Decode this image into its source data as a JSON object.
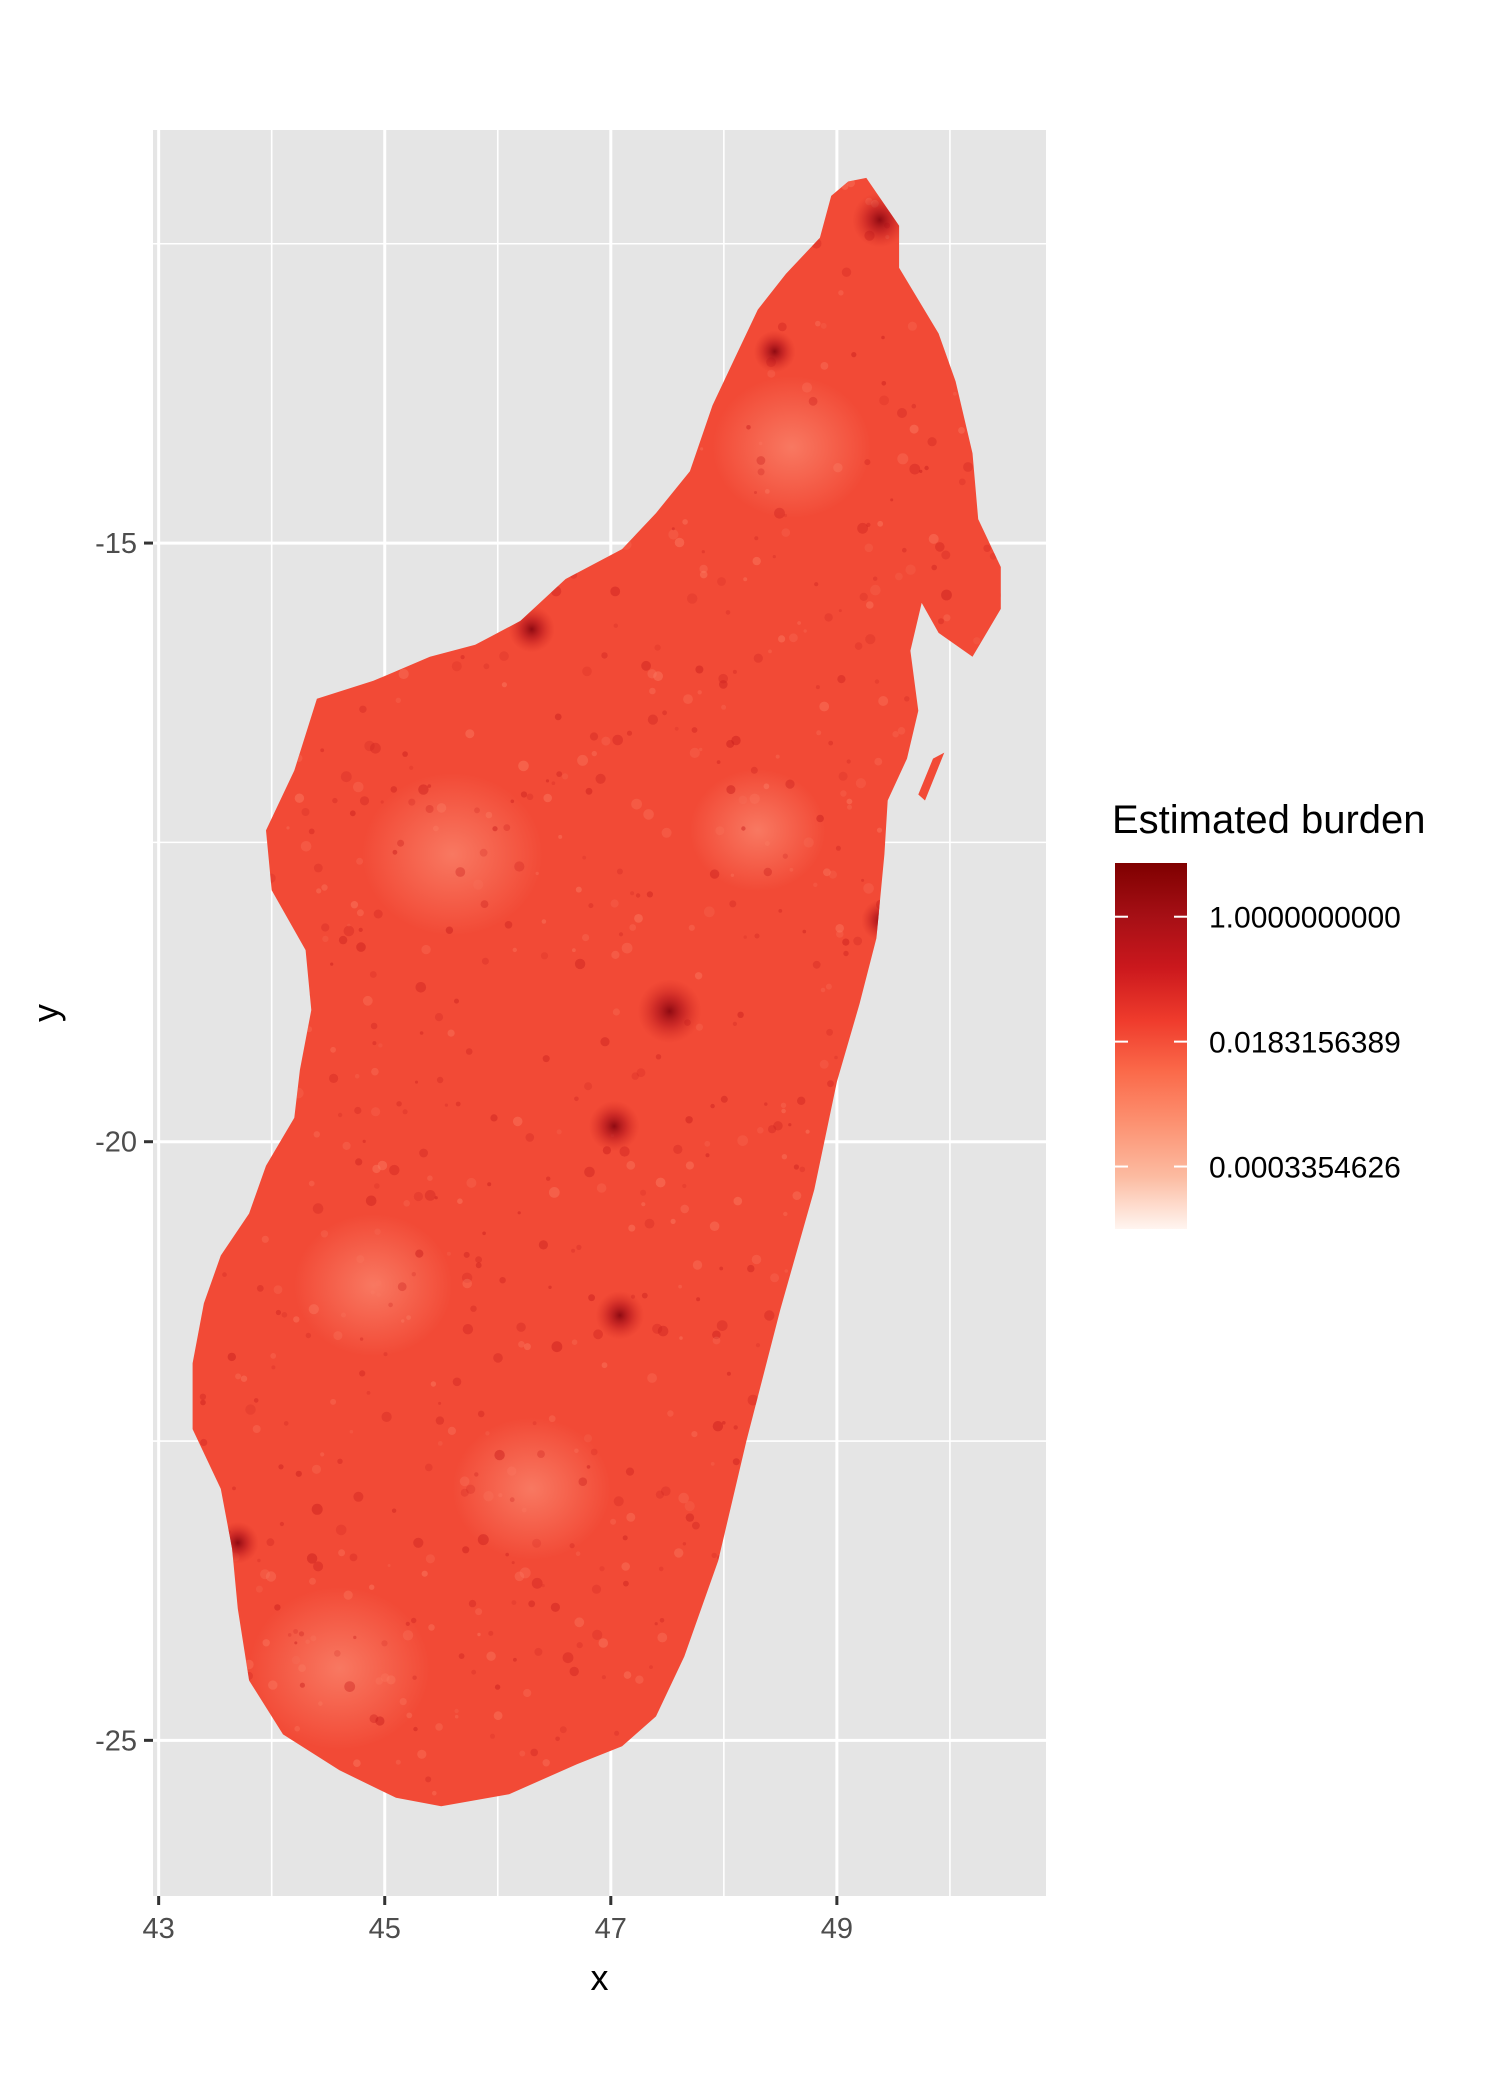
{
  "chart_data": {
    "type": "raster-map",
    "region": "Madagascar",
    "xlabel": "x",
    "ylabel": "y",
    "xlim": [
      42.95,
      50.85
    ],
    "ylim": [
      -26.3,
      -11.55
    ],
    "x_ticks": [
      43,
      45,
      47,
      49
    ],
    "x_tick_labels": [
      "43",
      "45",
      "47",
      "49"
    ],
    "x_minor_gridlines": [
      44,
      46,
      48,
      50
    ],
    "y_ticks": [
      -15,
      -20,
      -25
    ],
    "y_tick_labels": [
      "-15",
      "-20",
      "-25"
    ],
    "y_minor_gridlines": [
      -12.5,
      -17.5,
      -22.5
    ],
    "grid": true,
    "panel_background": "#e5e5e5",
    "gridline_color": "#ffffff",
    "legend": {
      "title": "Estimated burden",
      "placement": "right",
      "scale": "log",
      "labels": [
        "1.0000000000",
        "0.0183156389",
        "0.0003354626"
      ],
      "break_values": [
        1.0,
        0.0183156389,
        0.0003354626
      ],
      "colors": [
        "#fff5f0",
        "#fcbba1",
        "#fc9272",
        "#fb6a4a",
        "#ef3b2c",
        "#cb181d",
        "#a50f15",
        "#7f0000"
      ]
    },
    "fill_colors": {
      "base": "#f24a36",
      "light_patch": "#f9826a",
      "dark_hotspot": "#9e0a12"
    },
    "outline_lonlat": [
      [
        49.26,
        -11.95
      ],
      [
        49.55,
        -12.35
      ],
      [
        49.55,
        -12.7
      ],
      [
        49.9,
        -13.25
      ],
      [
        50.05,
        -13.65
      ],
      [
        50.2,
        -14.25
      ],
      [
        50.25,
        -14.8
      ],
      [
        50.45,
        -15.2
      ],
      [
        50.45,
        -15.55
      ],
      [
        50.2,
        -15.95
      ],
      [
        49.9,
        -15.75
      ],
      [
        49.75,
        -15.5
      ],
      [
        49.65,
        -15.9
      ],
      [
        49.72,
        -16.4
      ],
      [
        49.62,
        -16.8
      ],
      [
        49.45,
        -17.15
      ],
      [
        49.42,
        -17.6
      ],
      [
        49.35,
        -18.3
      ],
      [
        49.2,
        -18.85
      ],
      [
        49.0,
        -19.5
      ],
      [
        48.8,
        -20.4
      ],
      [
        48.5,
        -21.4
      ],
      [
        48.2,
        -22.5
      ],
      [
        47.95,
        -23.5
      ],
      [
        47.65,
        -24.3
      ],
      [
        47.4,
        -24.8
      ],
      [
        47.1,
        -25.05
      ],
      [
        46.7,
        -25.2
      ],
      [
        46.1,
        -25.45
      ],
      [
        45.5,
        -25.55
      ],
      [
        45.1,
        -25.48
      ],
      [
        44.6,
        -25.25
      ],
      [
        44.1,
        -24.95
      ],
      [
        43.8,
        -24.5
      ],
      [
        43.7,
        -23.9
      ],
      [
        43.65,
        -23.4
      ],
      [
        43.55,
        -22.9
      ],
      [
        43.3,
        -22.4
      ],
      [
        43.3,
        -21.85
      ],
      [
        43.4,
        -21.35
      ],
      [
        43.55,
        -20.95
      ],
      [
        43.8,
        -20.6
      ],
      [
        43.95,
        -20.2
      ],
      [
        44.2,
        -19.8
      ],
      [
        44.25,
        -19.4
      ],
      [
        44.35,
        -18.9
      ],
      [
        44.3,
        -18.4
      ],
      [
        44.0,
        -17.9
      ],
      [
        43.95,
        -17.4
      ],
      [
        44.2,
        -16.9
      ],
      [
        44.4,
        -16.3
      ],
      [
        44.9,
        -16.15
      ],
      [
        45.4,
        -15.95
      ],
      [
        45.8,
        -15.85
      ],
      [
        46.2,
        -15.65
      ],
      [
        46.6,
        -15.3
      ],
      [
        47.1,
        -15.05
      ],
      [
        47.4,
        -14.75
      ],
      [
        47.7,
        -14.4
      ],
      [
        47.9,
        -13.85
      ],
      [
        48.1,
        -13.45
      ],
      [
        48.3,
        -13.05
      ],
      [
        48.55,
        -12.75
      ],
      [
        48.85,
        -12.45
      ],
      [
        48.95,
        -12.1
      ],
      [
        49.1,
        -11.98
      ]
    ],
    "islands_lonlat": [
      [
        [
          48.18,
          -13.35
        ],
        [
          48.38,
          -13.3
        ],
        [
          48.42,
          -13.42
        ],
        [
          48.22,
          -13.45
        ]
      ],
      [
        [
          49.85,
          -16.8
        ],
        [
          49.95,
          -16.75
        ],
        [
          49.78,
          -17.15
        ],
        [
          49.72,
          -17.1
        ]
      ]
    ],
    "hotspots_lonlat": [
      {
        "x": 47.52,
        "y": -18.91,
        "weight": 1.0
      },
      {
        "x": 47.03,
        "y": -19.87,
        "weight": 0.7
      },
      {
        "x": 47.08,
        "y": -21.45,
        "weight": 0.65
      },
      {
        "x": 49.38,
        "y": -12.3,
        "weight": 0.8
      },
      {
        "x": 46.3,
        "y": -15.72,
        "weight": 0.6
      },
      {
        "x": 49.4,
        "y": -18.15,
        "weight": 0.5
      },
      {
        "x": 43.7,
        "y": -23.35,
        "weight": 0.5
      },
      {
        "x": 48.45,
        "y": -13.4,
        "weight": 0.5
      }
    ],
    "light_patches_lonlat": [
      {
        "x": 45.6,
        "y": -17.6,
        "r": 0.8
      },
      {
        "x": 48.6,
        "y": -14.2,
        "r": 0.7
      },
      {
        "x": 44.9,
        "y": -21.2,
        "r": 0.7
      },
      {
        "x": 44.6,
        "y": -24.4,
        "r": 0.8
      },
      {
        "x": 46.3,
        "y": -22.9,
        "r": 0.7
      },
      {
        "x": 48.3,
        "y": -17.4,
        "r": 0.6
      }
    ]
  }
}
